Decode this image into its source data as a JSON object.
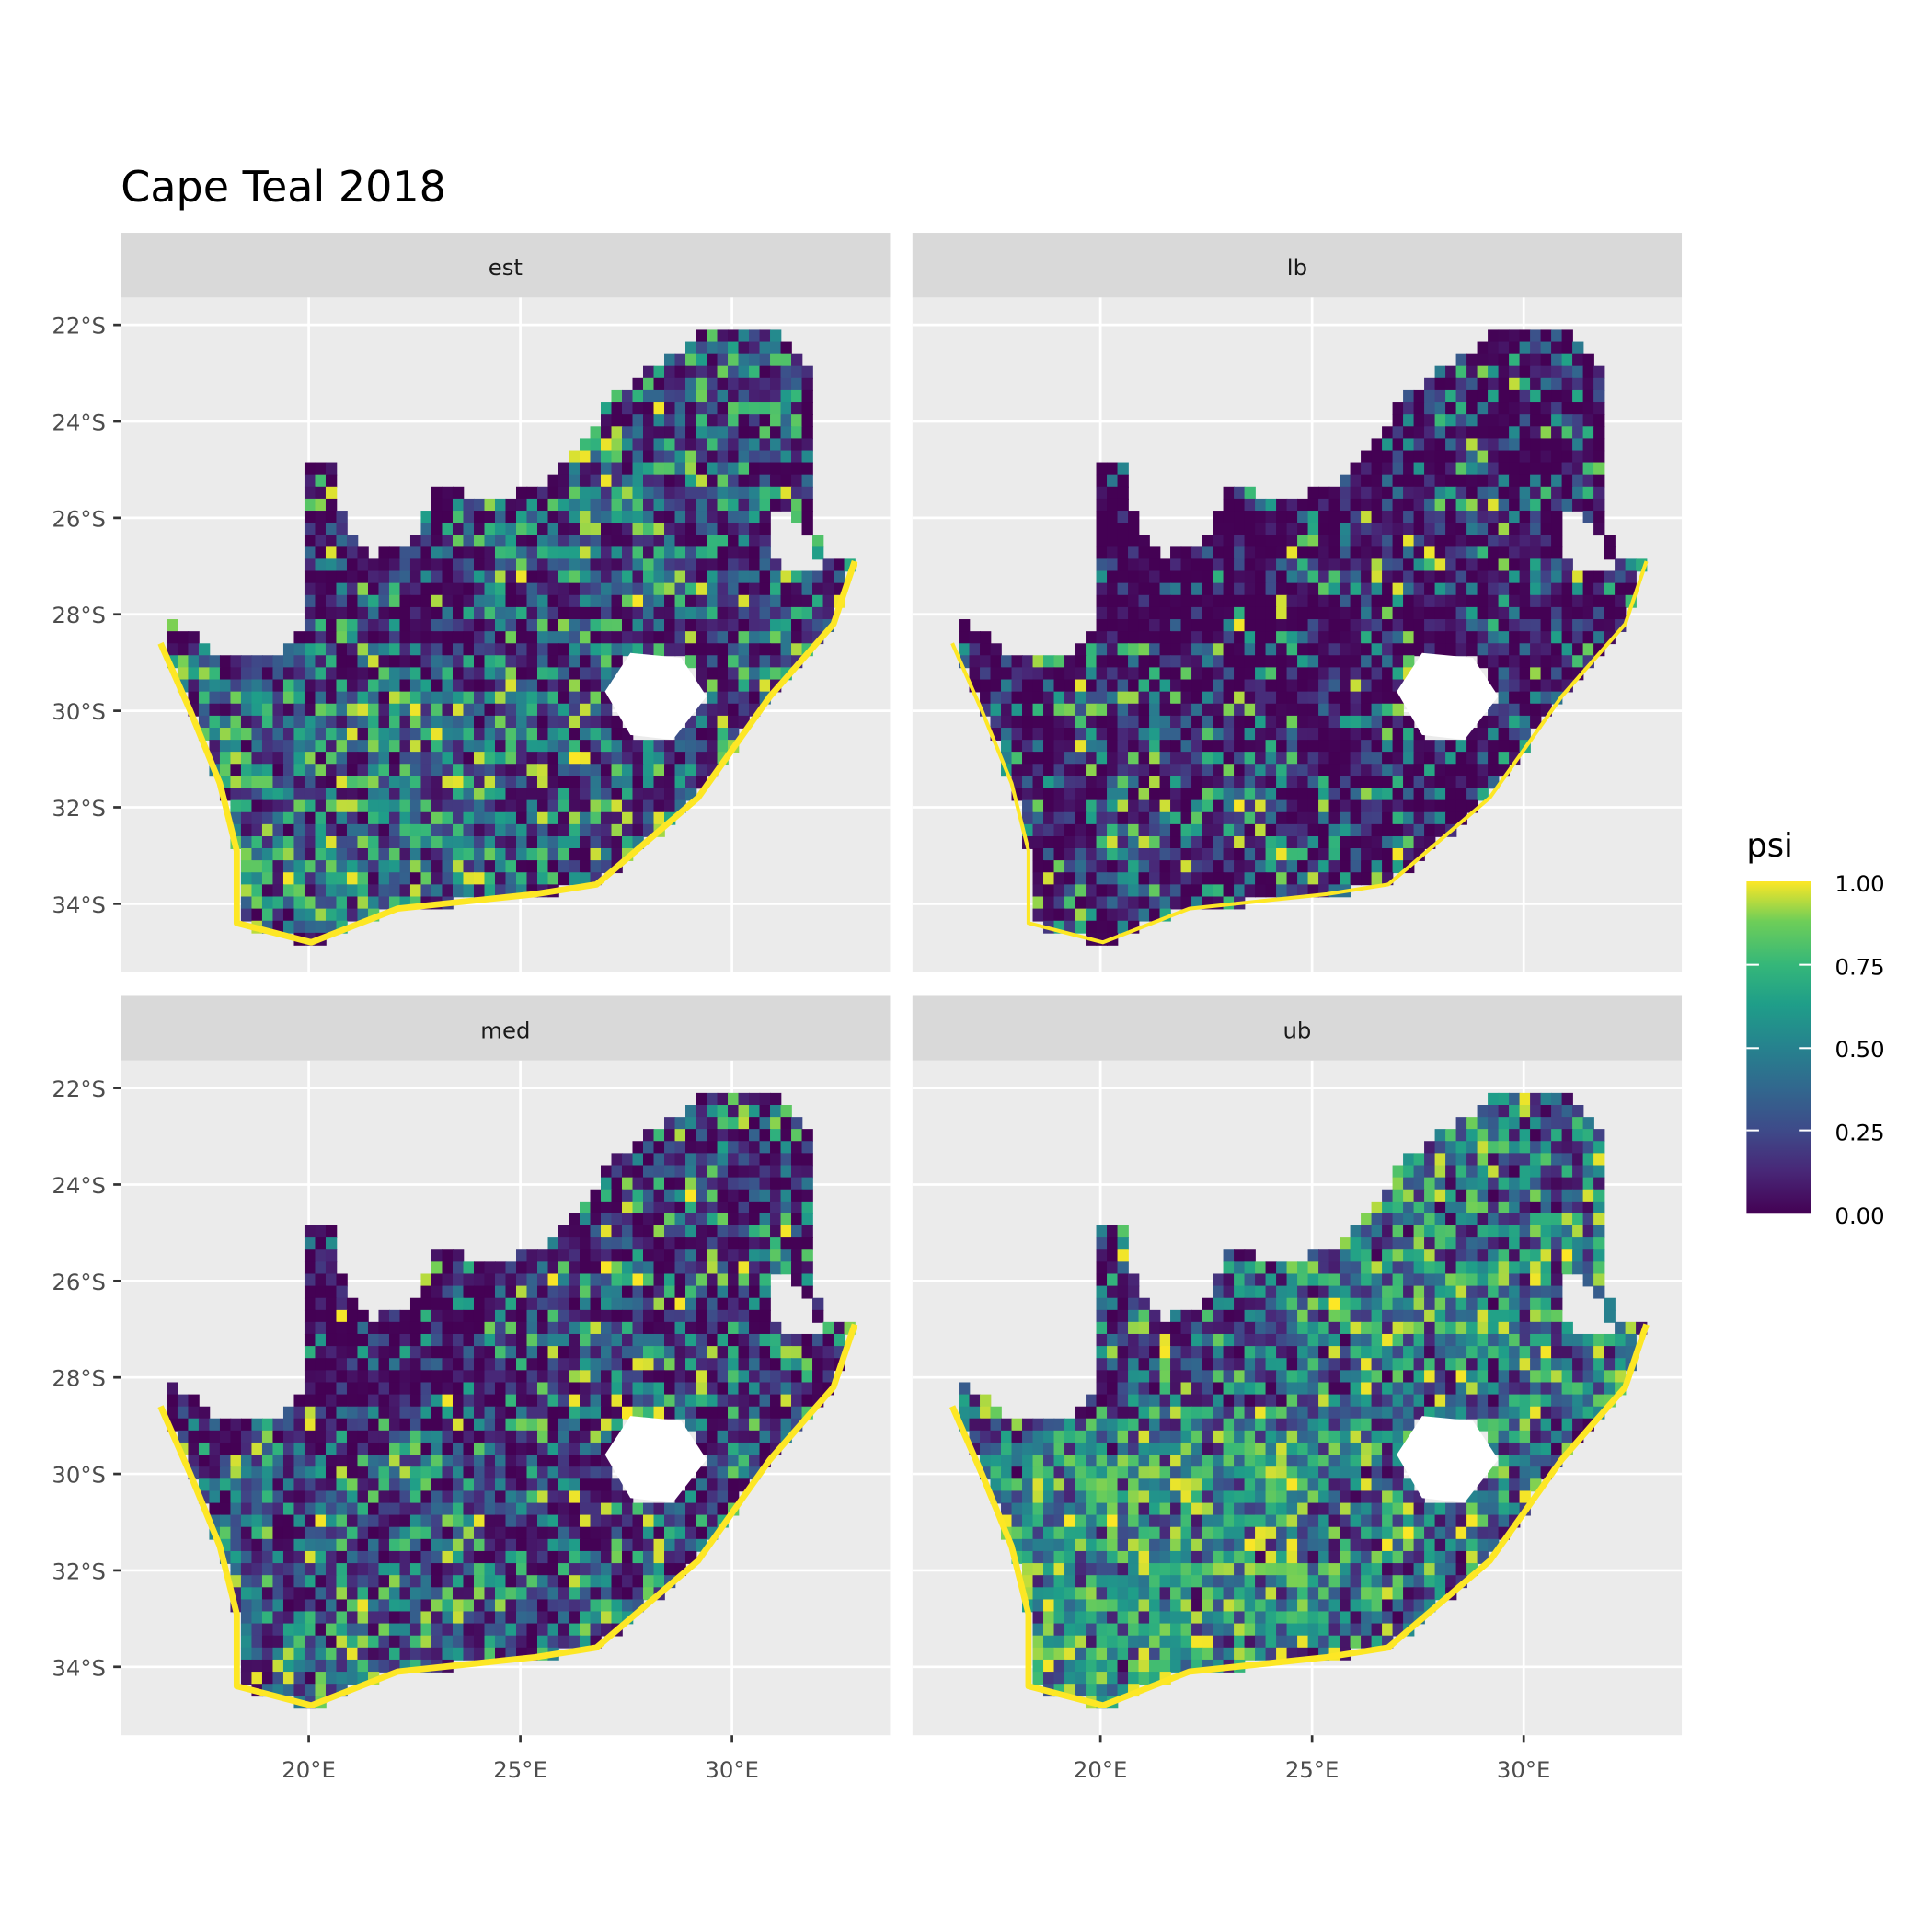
{
  "title": "Cape Teal 2018",
  "panels": [
    {
      "label": "est"
    },
    {
      "label": "lb"
    },
    {
      "label": "med"
    },
    {
      "label": "ub"
    }
  ],
  "axes": {
    "y_ticks": [
      "22°S",
      "24°S",
      "26°S",
      "28°S",
      "30°S",
      "32°S",
      "34°S"
    ],
    "y_tick_values": [
      -22,
      -24,
      -26,
      -28,
      -30,
      -32,
      -34
    ],
    "x_ticks": [
      "20°E",
      "25°E",
      "30°E"
    ],
    "x_tick_values": [
      20,
      25,
      30
    ]
  },
  "legend": {
    "title": "psi",
    "labels": [
      "1.00",
      "0.75",
      "0.50",
      "0.25",
      "0.00"
    ],
    "range": [
      0,
      1
    ],
    "palette": [
      "#440154",
      "#3b528b",
      "#21918c",
      "#5ec962",
      "#fde725"
    ]
  },
  "colors": {
    "panel_bg": "#EBEBEB",
    "strip_bg": "#D9D9D9",
    "grid": "#FFFFFF"
  }
}
